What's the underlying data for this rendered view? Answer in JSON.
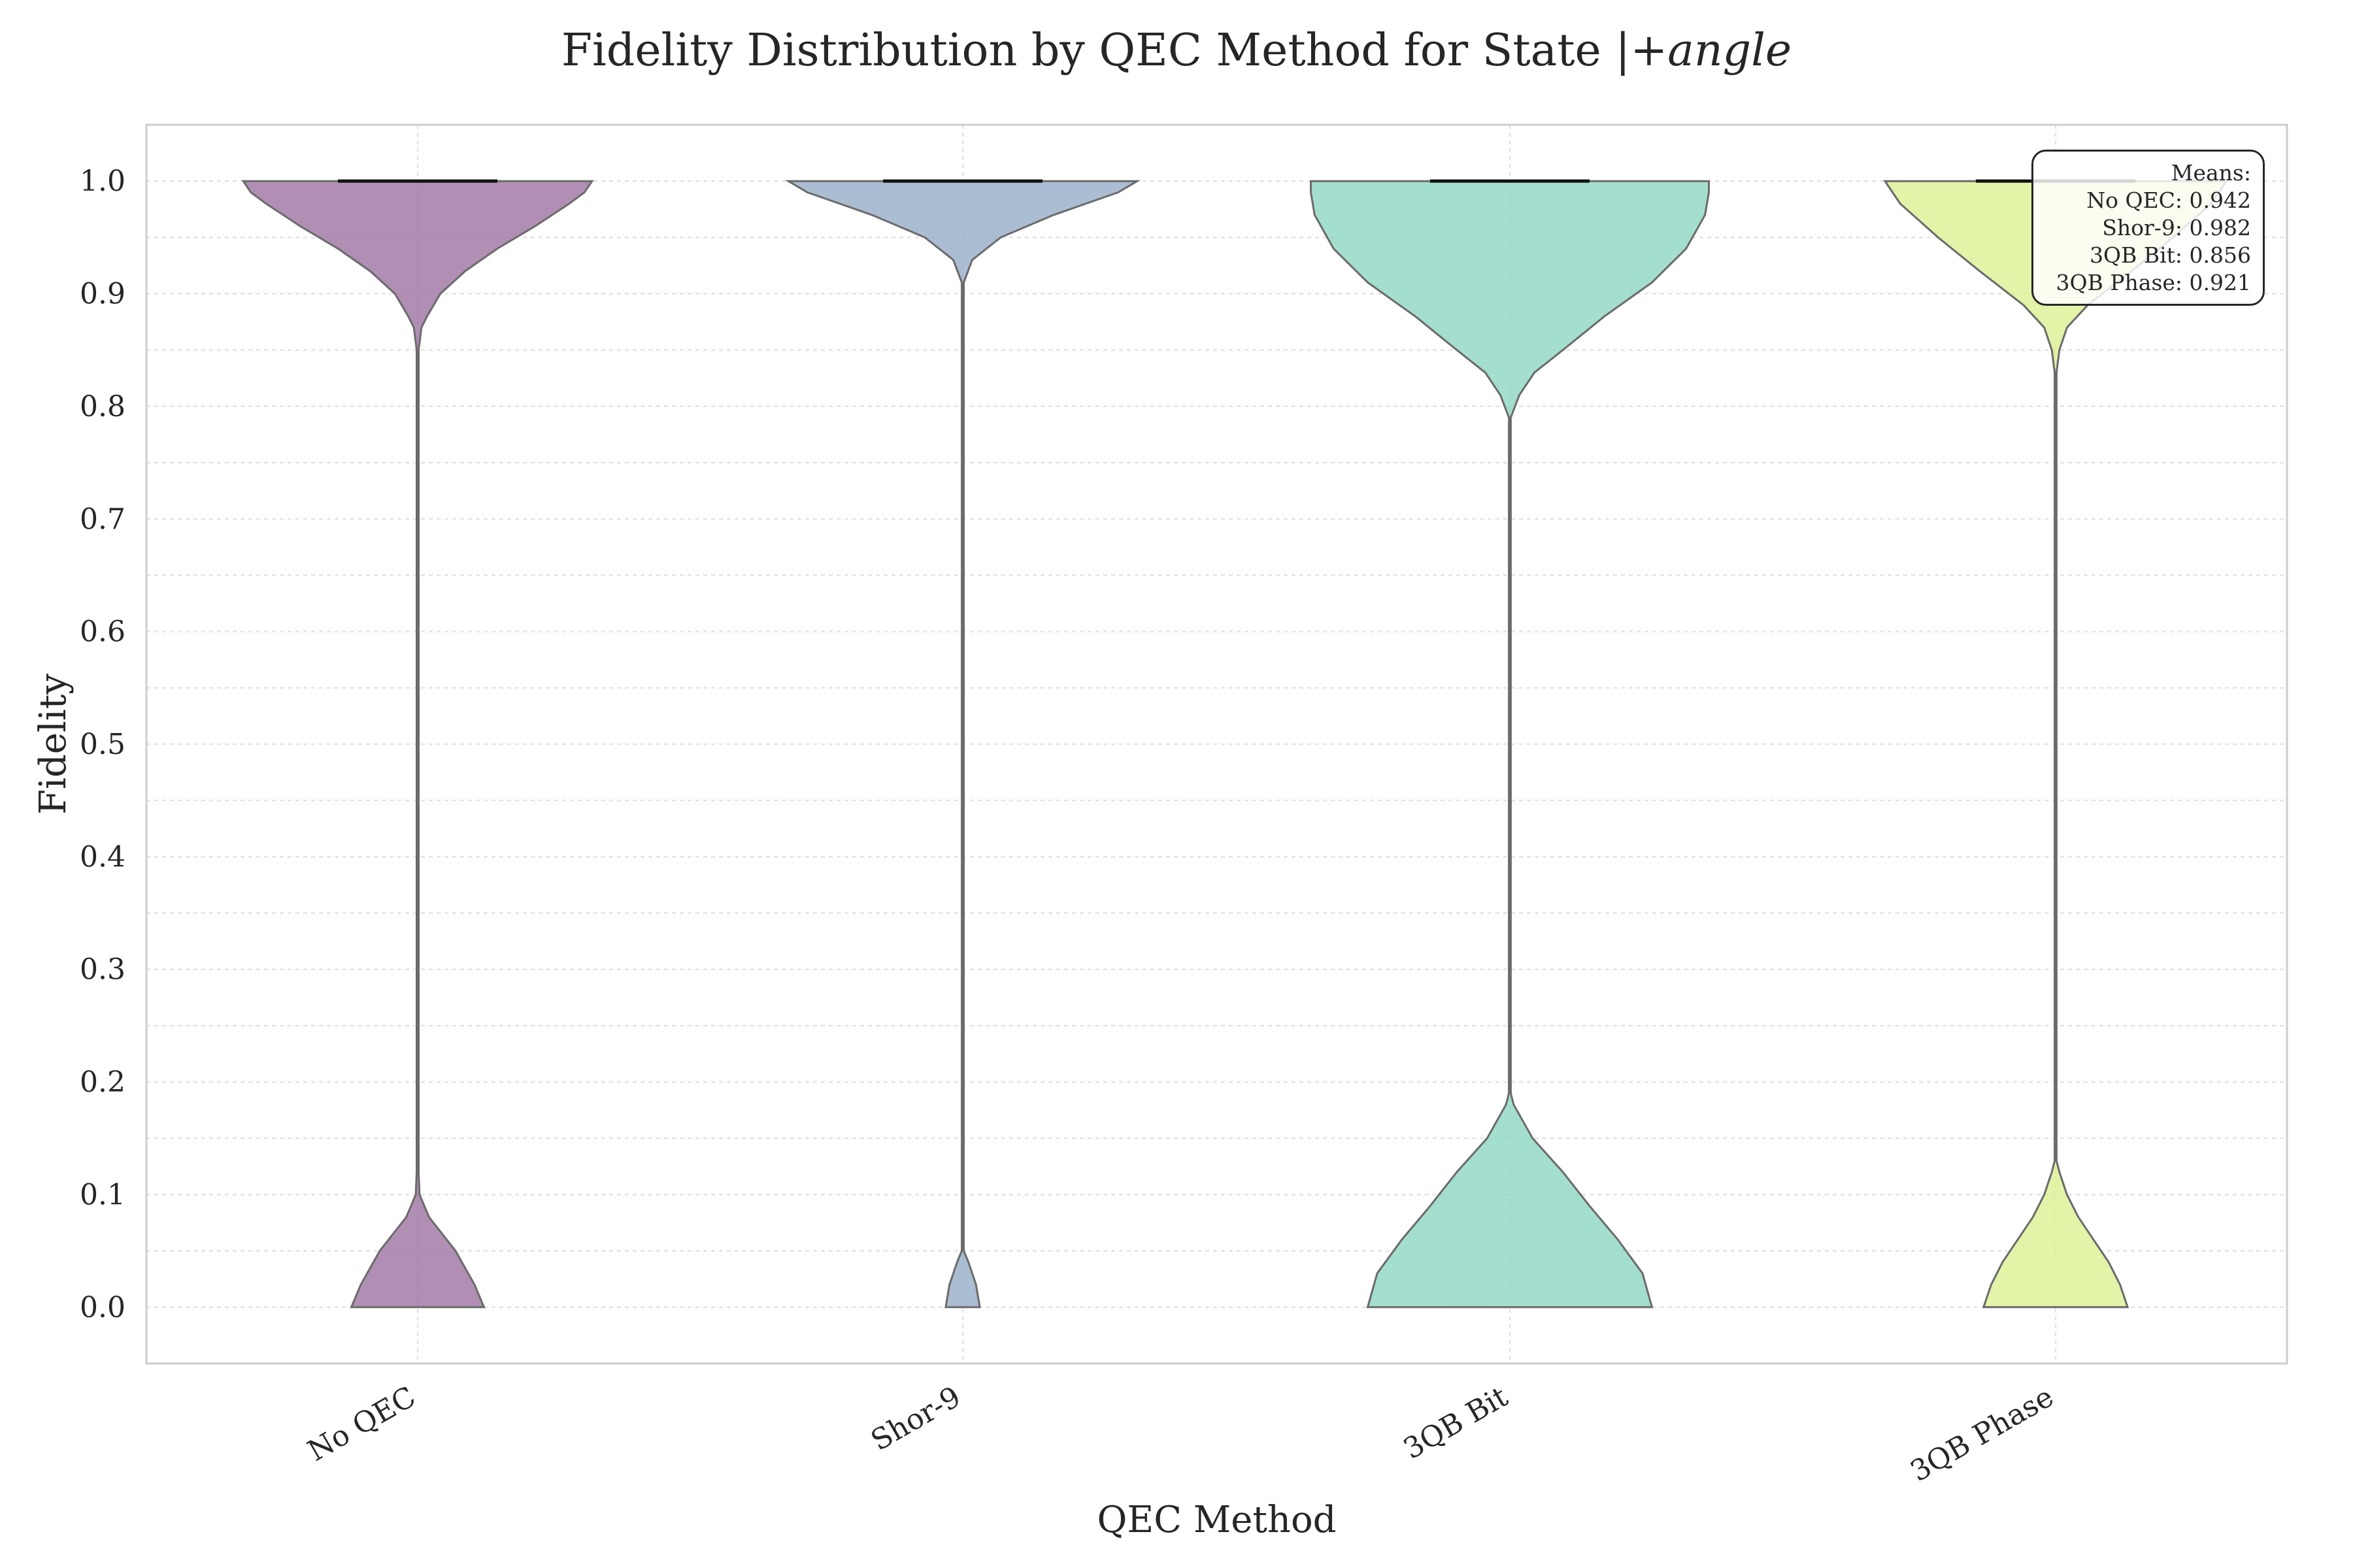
{
  "chart_data": {
    "type": "violin",
    "title": "Fidelity Distribution by QEC Method for State |+",
    "title_italic": "angle",
    "xlabel": "QEC Method",
    "ylabel": "Fidelity",
    "categories": [
      "No QEC",
      "Shor-9",
      "3QB Bit",
      "3QB Phase"
    ],
    "ylim": [
      -0.05,
      1.05
    ],
    "yticks": [
      "0.0",
      "0.1",
      "0.2",
      "0.3",
      "0.4",
      "0.5",
      "0.6",
      "0.7",
      "0.8",
      "0.9",
      "1.0"
    ],
    "grid": true,
    "medians": [
      1.0,
      1.0,
      1.0,
      1.0
    ],
    "violins": [
      {
        "category": "No QEC",
        "color": "#9b6f9f",
        "profile": [
          [
            0.0,
            0.35
          ],
          [
            0.02,
            0.3
          ],
          [
            0.05,
            0.2
          ],
          [
            0.08,
            0.06
          ],
          [
            0.1,
            0.01
          ],
          [
            0.12,
            0.005
          ],
          [
            0.85,
            0.005
          ],
          [
            0.87,
            0.02
          ],
          [
            0.88,
            0.05
          ],
          [
            0.9,
            0.12
          ],
          [
            0.92,
            0.25
          ],
          [
            0.94,
            0.42
          ],
          [
            0.96,
            0.62
          ],
          [
            0.98,
            0.8
          ],
          [
            0.99,
            0.88
          ],
          [
            1.0,
            0.92
          ]
        ]
      },
      {
        "category": "Shor-9",
        "color": "#93aac6",
        "profile": [
          [
            0.0,
            0.09
          ],
          [
            0.02,
            0.07
          ],
          [
            0.04,
            0.03
          ],
          [
            0.05,
            0.005
          ],
          [
            0.91,
            0.005
          ],
          [
            0.93,
            0.05
          ],
          [
            0.95,
            0.2
          ],
          [
            0.97,
            0.48
          ],
          [
            0.99,
            0.82
          ],
          [
            1.0,
            0.92
          ]
        ]
      },
      {
        "category": "3QB Bit",
        "color": "#8ad5c0",
        "profile": [
          [
            0.0,
            0.75
          ],
          [
            0.03,
            0.7
          ],
          [
            0.06,
            0.57
          ],
          [
            0.09,
            0.42
          ],
          [
            0.12,
            0.28
          ],
          [
            0.15,
            0.12
          ],
          [
            0.18,
            0.02
          ],
          [
            0.19,
            0.005
          ],
          [
            0.79,
            0.005
          ],
          [
            0.81,
            0.05
          ],
          [
            0.83,
            0.13
          ],
          [
            0.85,
            0.28
          ],
          [
            0.88,
            0.5
          ],
          [
            0.91,
            0.75
          ],
          [
            0.94,
            0.93
          ],
          [
            0.97,
            1.03
          ],
          [
            0.99,
            1.05
          ],
          [
            1.0,
            1.05
          ]
        ]
      },
      {
        "category": "3QB Phase",
        "color": "#dbef8f",
        "profile": [
          [
            0.0,
            0.38
          ],
          [
            0.02,
            0.34
          ],
          [
            0.04,
            0.28
          ],
          [
            0.06,
            0.2
          ],
          [
            0.08,
            0.12
          ],
          [
            0.1,
            0.06
          ],
          [
            0.12,
            0.02
          ],
          [
            0.13,
            0.005
          ],
          [
            0.83,
            0.005
          ],
          [
            0.85,
            0.02
          ],
          [
            0.87,
            0.06
          ],
          [
            0.89,
            0.17
          ],
          [
            0.92,
            0.4
          ],
          [
            0.95,
            0.62
          ],
          [
            0.98,
            0.82
          ],
          [
            1.0,
            0.9
          ]
        ]
      }
    ],
    "annotation": {
      "heading": "Means:",
      "lines": [
        "No QEC: 0.942",
        "Shor-9: 0.982",
        "3QB Bit: 0.856",
        "3QB Phase: 0.921"
      ],
      "placement": "top-right"
    }
  }
}
